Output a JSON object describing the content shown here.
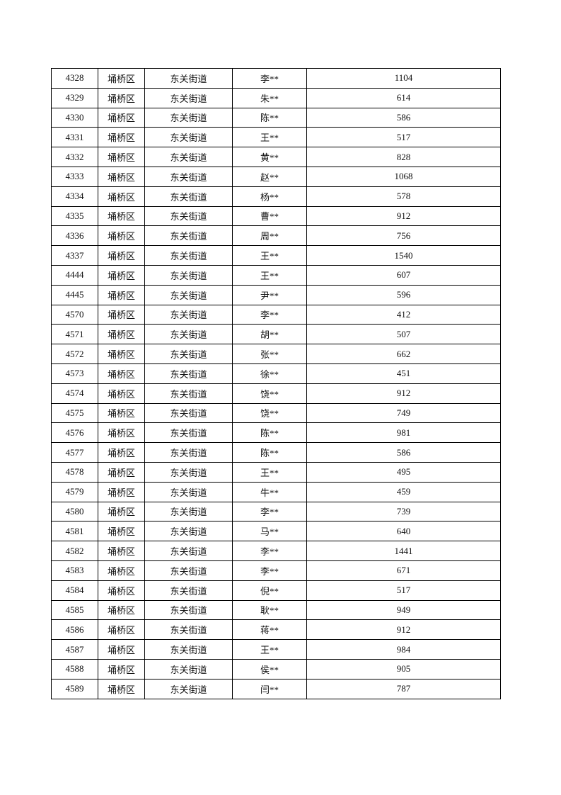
{
  "table": {
    "rows": [
      [
        "4328",
        "埇桥区",
        "东关街道",
        "李**",
        "1104"
      ],
      [
        "4329",
        "埇桥区",
        "东关街道",
        "朱**",
        "614"
      ],
      [
        "4330",
        "埇桥区",
        "东关街道",
        "陈**",
        "586"
      ],
      [
        "4331",
        "埇桥区",
        "东关街道",
        "王**",
        "517"
      ],
      [
        "4332",
        "埇桥区",
        "东关街道",
        "黄**",
        "828"
      ],
      [
        "4333",
        "埇桥区",
        "东关街道",
        "赵**",
        "1068"
      ],
      [
        "4334",
        "埇桥区",
        "东关街道",
        "杨**",
        "578"
      ],
      [
        "4335",
        "埇桥区",
        "东关街道",
        "曹**",
        "912"
      ],
      [
        "4336",
        "埇桥区",
        "东关街道",
        "周**",
        "756"
      ],
      [
        "4337",
        "埇桥区",
        "东关街道",
        "王**",
        "1540"
      ],
      [
        "4444",
        "埇桥区",
        "东关街道",
        "王**",
        "607"
      ],
      [
        "4445",
        "埇桥区",
        "东关街道",
        "尹**",
        "596"
      ],
      [
        "4570",
        "埇桥区",
        "东关街道",
        "李**",
        "412"
      ],
      [
        "4571",
        "埇桥区",
        "东关街道",
        "胡**",
        "507"
      ],
      [
        "4572",
        "埇桥区",
        "东关街道",
        "张**",
        "662"
      ],
      [
        "4573",
        "埇桥区",
        "东关街道",
        "徐**",
        "451"
      ],
      [
        "4574",
        "埇桥区",
        "东关街道",
        "饶**",
        "912"
      ],
      [
        "4575",
        "埇桥区",
        "东关街道",
        "饶**",
        "749"
      ],
      [
        "4576",
        "埇桥区",
        "东关街道",
        "陈**",
        "981"
      ],
      [
        "4577",
        "埇桥区",
        "东关街道",
        "陈**",
        "586"
      ],
      [
        "4578",
        "埇桥区",
        "东关街道",
        "王**",
        "495"
      ],
      [
        "4579",
        "埇桥区",
        "东关街道",
        "牛**",
        "459"
      ],
      [
        "4580",
        "埇桥区",
        "东关街道",
        "李**",
        "739"
      ],
      [
        "4581",
        "埇桥区",
        "东关街道",
        "马**",
        "640"
      ],
      [
        "4582",
        "埇桥区",
        "东关街道",
        "李**",
        "1441"
      ],
      [
        "4583",
        "埇桥区",
        "东关街道",
        "李**",
        "671"
      ],
      [
        "4584",
        "埇桥区",
        "东关街道",
        "倪**",
        "517"
      ],
      [
        "4585",
        "埇桥区",
        "东关街道",
        "耿**",
        "949"
      ],
      [
        "4586",
        "埇桥区",
        "东关街道",
        "蒋**",
        "912"
      ],
      [
        "4587",
        "埇桥区",
        "东关街道",
        "王**",
        "984"
      ],
      [
        "4588",
        "埇桥区",
        "东关街道",
        "侯**",
        "905"
      ],
      [
        "4589",
        "埇桥区",
        "东关街道",
        "闫**",
        "787"
      ]
    ]
  }
}
